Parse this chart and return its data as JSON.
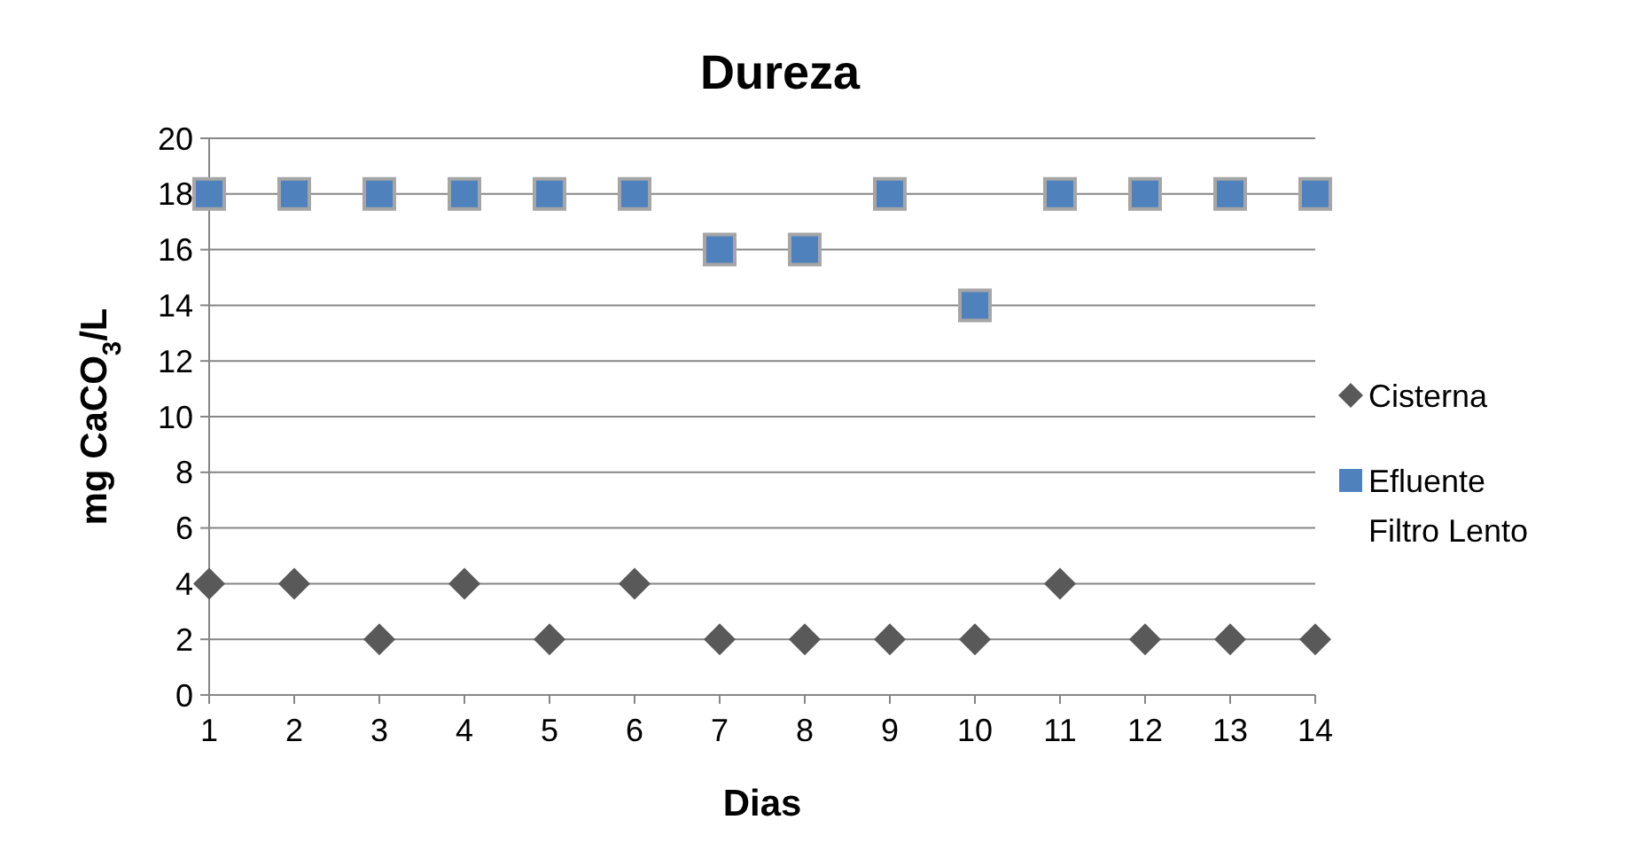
{
  "chart_data": {
    "type": "scatter",
    "title": "Dureza",
    "xlabel": "Dias",
    "ylabel": "mg CaCO$_{3}$/L",
    "categories": [
      "1",
      "2",
      "3",
      "4",
      "5",
      "6",
      "7",
      "8",
      "9",
      "10",
      "11",
      "12",
      "13",
      "14"
    ],
    "series": [
      {
        "name": "Cisterna",
        "color": "#595959",
        "marker": "diamond",
        "values": [
          4,
          4,
          2,
          4,
          2,
          4,
          2,
          2,
          2,
          2,
          4,
          2,
          2,
          2
        ]
      },
      {
        "name": "Efluente Filtro Lento",
        "color": "#4f81bd",
        "marker": "square",
        "values": [
          18,
          18,
          18,
          18,
          18,
          18,
          16,
          16,
          18,
          14,
          18,
          18,
          18,
          18
        ]
      }
    ],
    "ylim": [
      0,
      20
    ],
    "yticks": [
      0,
      2,
      4,
      6,
      8,
      10,
      12,
      14,
      16,
      18,
      20
    ],
    "grid": "y",
    "legend": "right"
  }
}
